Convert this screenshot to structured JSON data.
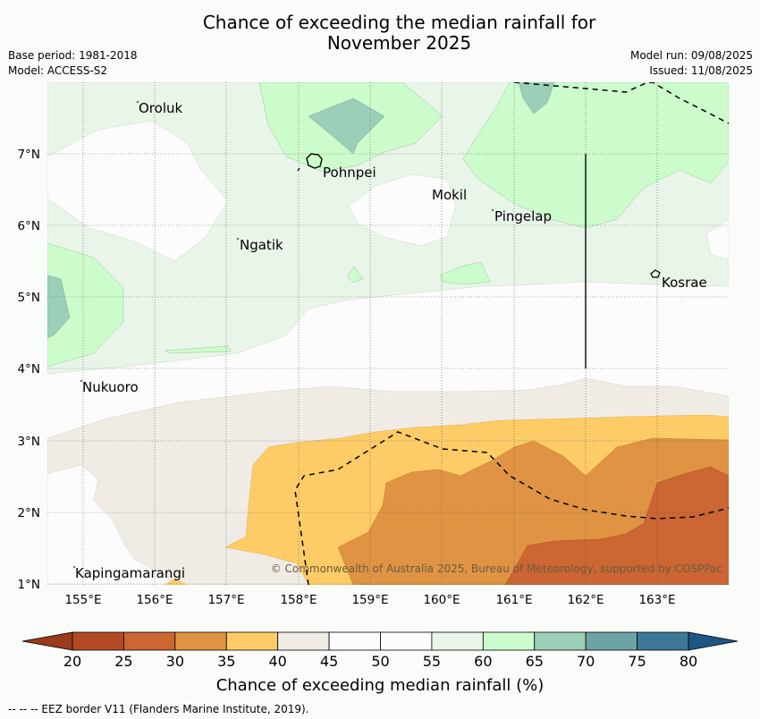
{
  "title_line1": "Chance of exceeding the median rainfall for",
  "title_line2": "November 2025",
  "base_period": "Base period: 1981-2018",
  "model": "Model: ACCESS-S2",
  "model_run": "Model run: 09/08/2025",
  "issued": "Issued: 11/08/2025",
  "places": [
    "Oroluk",
    "Pohnpei",
    "Mokil",
    "Pingelap",
    "Ngatik",
    "Kosrae",
    "Nukuoro",
    "Kapingamarangi"
  ],
  "lon_ticks": [
    "155°E",
    "156°E",
    "157°E",
    "158°E",
    "159°E",
    "160°E",
    "161°E",
    "162°E",
    "163°E"
  ],
  "lat_ticks": [
    "7°N",
    "6°N",
    "5°N",
    "4°N",
    "3°N",
    "2°N",
    "1°N"
  ],
  "credit": "© Commonwealth of Australia 2025, Bureau of Meteorology, supported by COSPPac",
  "colorbar": {
    "ticks": [
      "20",
      "25",
      "30",
      "35",
      "40",
      "45",
      "50",
      "55",
      "60",
      "65",
      "70",
      "75",
      "80"
    ],
    "colors": [
      "#b34a25",
      "#cc6633",
      "#e09443",
      "#fdcc66",
      "#f1ebe6",
      "#fbfcfb",
      "#fbfcfb",
      "#eaf5ea",
      "#ccfccc",
      "#9ccfb7",
      "#6ea3a6",
      "#3e7898"
    ],
    "under_color": "#9a3c1c",
    "over_color": "#1d5684",
    "label": "Chance of exceeding median rainfall (%)"
  },
  "footnote": "--  --  -- EEZ border V11 (Flanders Marine Institute, 2019)."
}
